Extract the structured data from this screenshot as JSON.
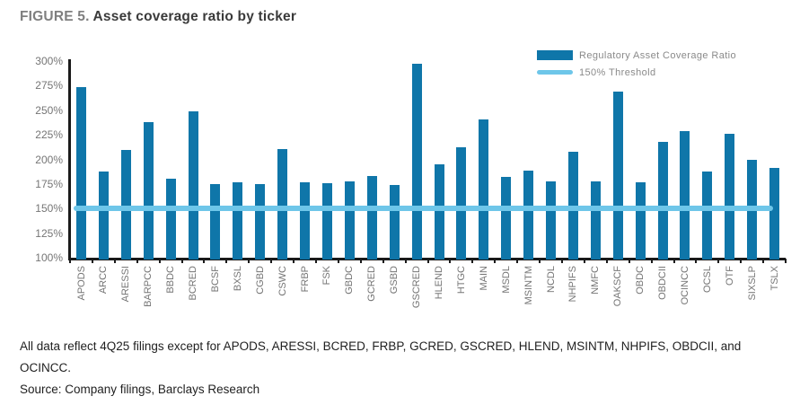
{
  "title": {
    "prefix": "FIGURE 5.",
    "text": "Asset coverage ratio by ticker"
  },
  "legend": {
    "items": [
      {
        "label": "Regulatory Asset Coverage Ratio",
        "swatch": "bar",
        "color": "#0F76A9"
      },
      {
        "label": "150% Threshold",
        "swatch": "line",
        "color": "#6EC6E9"
      }
    ],
    "position": "top-right"
  },
  "colors": {
    "bar": "#0F76A9",
    "threshold_line": "#6EC6E9",
    "axis": "#1A1A1A",
    "tick_labels": "#757575",
    "title_prefix": "#7F7F7F",
    "title_text": "#3A3A3A"
  },
  "chart_data": {
    "type": "bar",
    "title": "Asset coverage ratio by ticker",
    "series_name": "Regulatory Asset Coverage Ratio",
    "categories": [
      "APODS",
      "ARCC",
      "ARESSI",
      "BARPCC",
      "BBDC",
      "BCRED",
      "BCSF",
      "BXSL",
      "CGBD",
      "CSWC",
      "FRBP",
      "FSK",
      "GBDC",
      "GCRED",
      "GSBD",
      "GSCRED",
      "HLEND",
      "HTGC",
      "MAIN",
      "MSDL",
      "MSINTM",
      "NCDL",
      "NHPIFS",
      "NMFC",
      "OAKSCF",
      "OBDC",
      "OBDCII",
      "OCINCC",
      "OCSL",
      "OTF",
      "SIXSLP",
      "TSLX"
    ],
    "values": [
      274,
      188,
      210,
      238,
      180,
      249,
      175,
      177,
      175,
      211,
      177,
      176,
      178,
      183,
      174,
      297,
      195,
      212,
      241,
      182,
      189,
      178,
      208,
      178,
      269,
      177,
      218,
      229,
      188,
      226,
      200,
      191
    ],
    "threshold": {
      "label": "150% Threshold",
      "value": 150
    },
    "ylim": [
      100,
      300
    ],
    "yticks": [
      100,
      125,
      150,
      175,
      200,
      225,
      250,
      275,
      300
    ],
    "ytick_suffix": "%",
    "xlabel": "",
    "ylabel": "",
    "grid": false,
    "legend_position": "top-right"
  },
  "footnote": "All data reflect 4Q25 filings except for APODS, ARESSI, BCRED, FRBP, GCRED, GSCRED, HLEND, MSINTM, NHPIFS, OBDCII, and OCINCC.",
  "source": "Source: Company filings, Barclays Research"
}
